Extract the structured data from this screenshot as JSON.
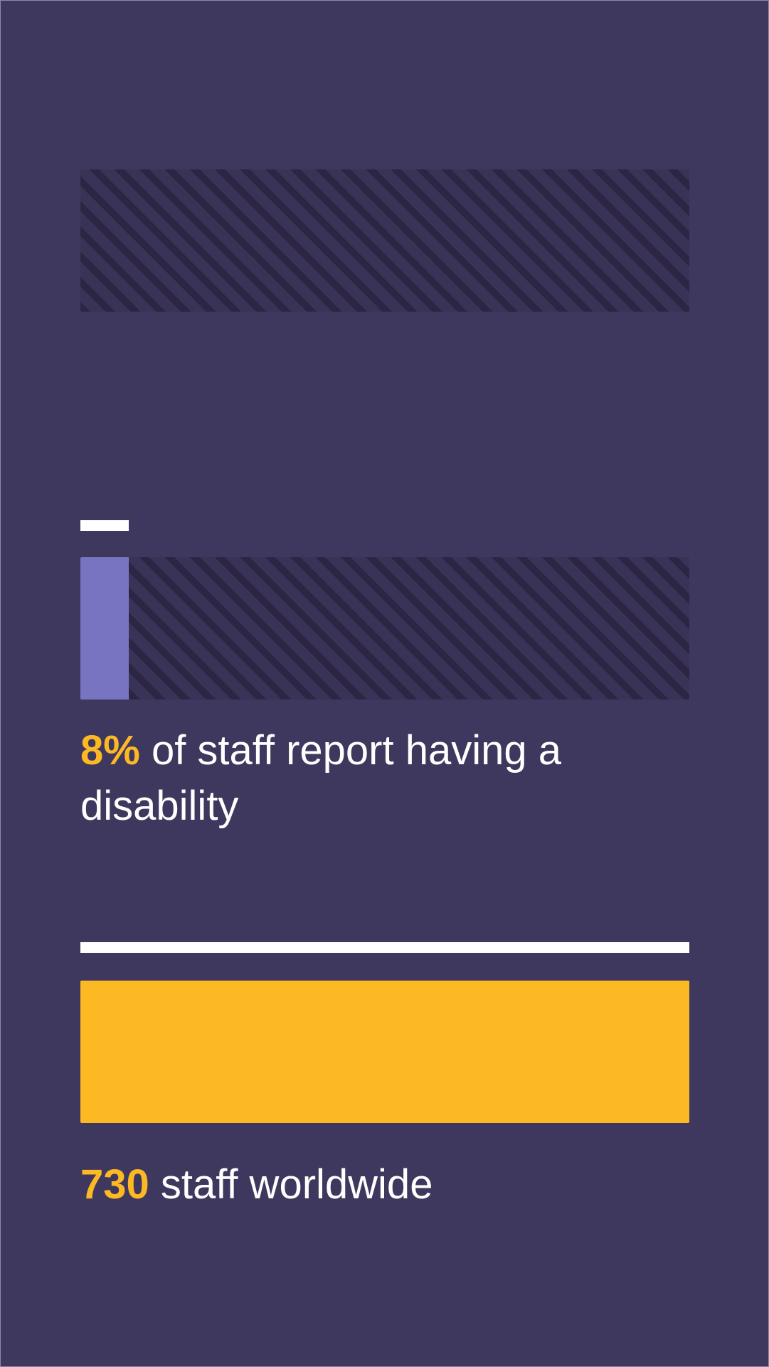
{
  "colors": {
    "background": "#3f385e",
    "accent_purple": "#7874c1",
    "accent_yellow": "#fdb924",
    "text": "#ffffff"
  },
  "chart_data": [
    {
      "type": "bar",
      "orientation": "horizontal",
      "values": [
        0
      ],
      "max": 100,
      "fill_color": "#7874c1",
      "marker_color": "#ffffff",
      "value_text": "",
      "label_text": ""
    },
    {
      "type": "bar",
      "orientation": "horizontal",
      "values": [
        8
      ],
      "unit": "%",
      "max": 100,
      "fill_color": "#7874c1",
      "marker_color": "#ffffff",
      "value_text": "8%",
      "label_text": " of staff report having a disability"
    },
    {
      "type": "bar",
      "orientation": "horizontal",
      "values": [
        730
      ],
      "max": 730,
      "fill_color": "#fdb924",
      "marker_color": "#ffffff",
      "value_text": "730",
      "label_text": " staff worldwide"
    }
  ]
}
